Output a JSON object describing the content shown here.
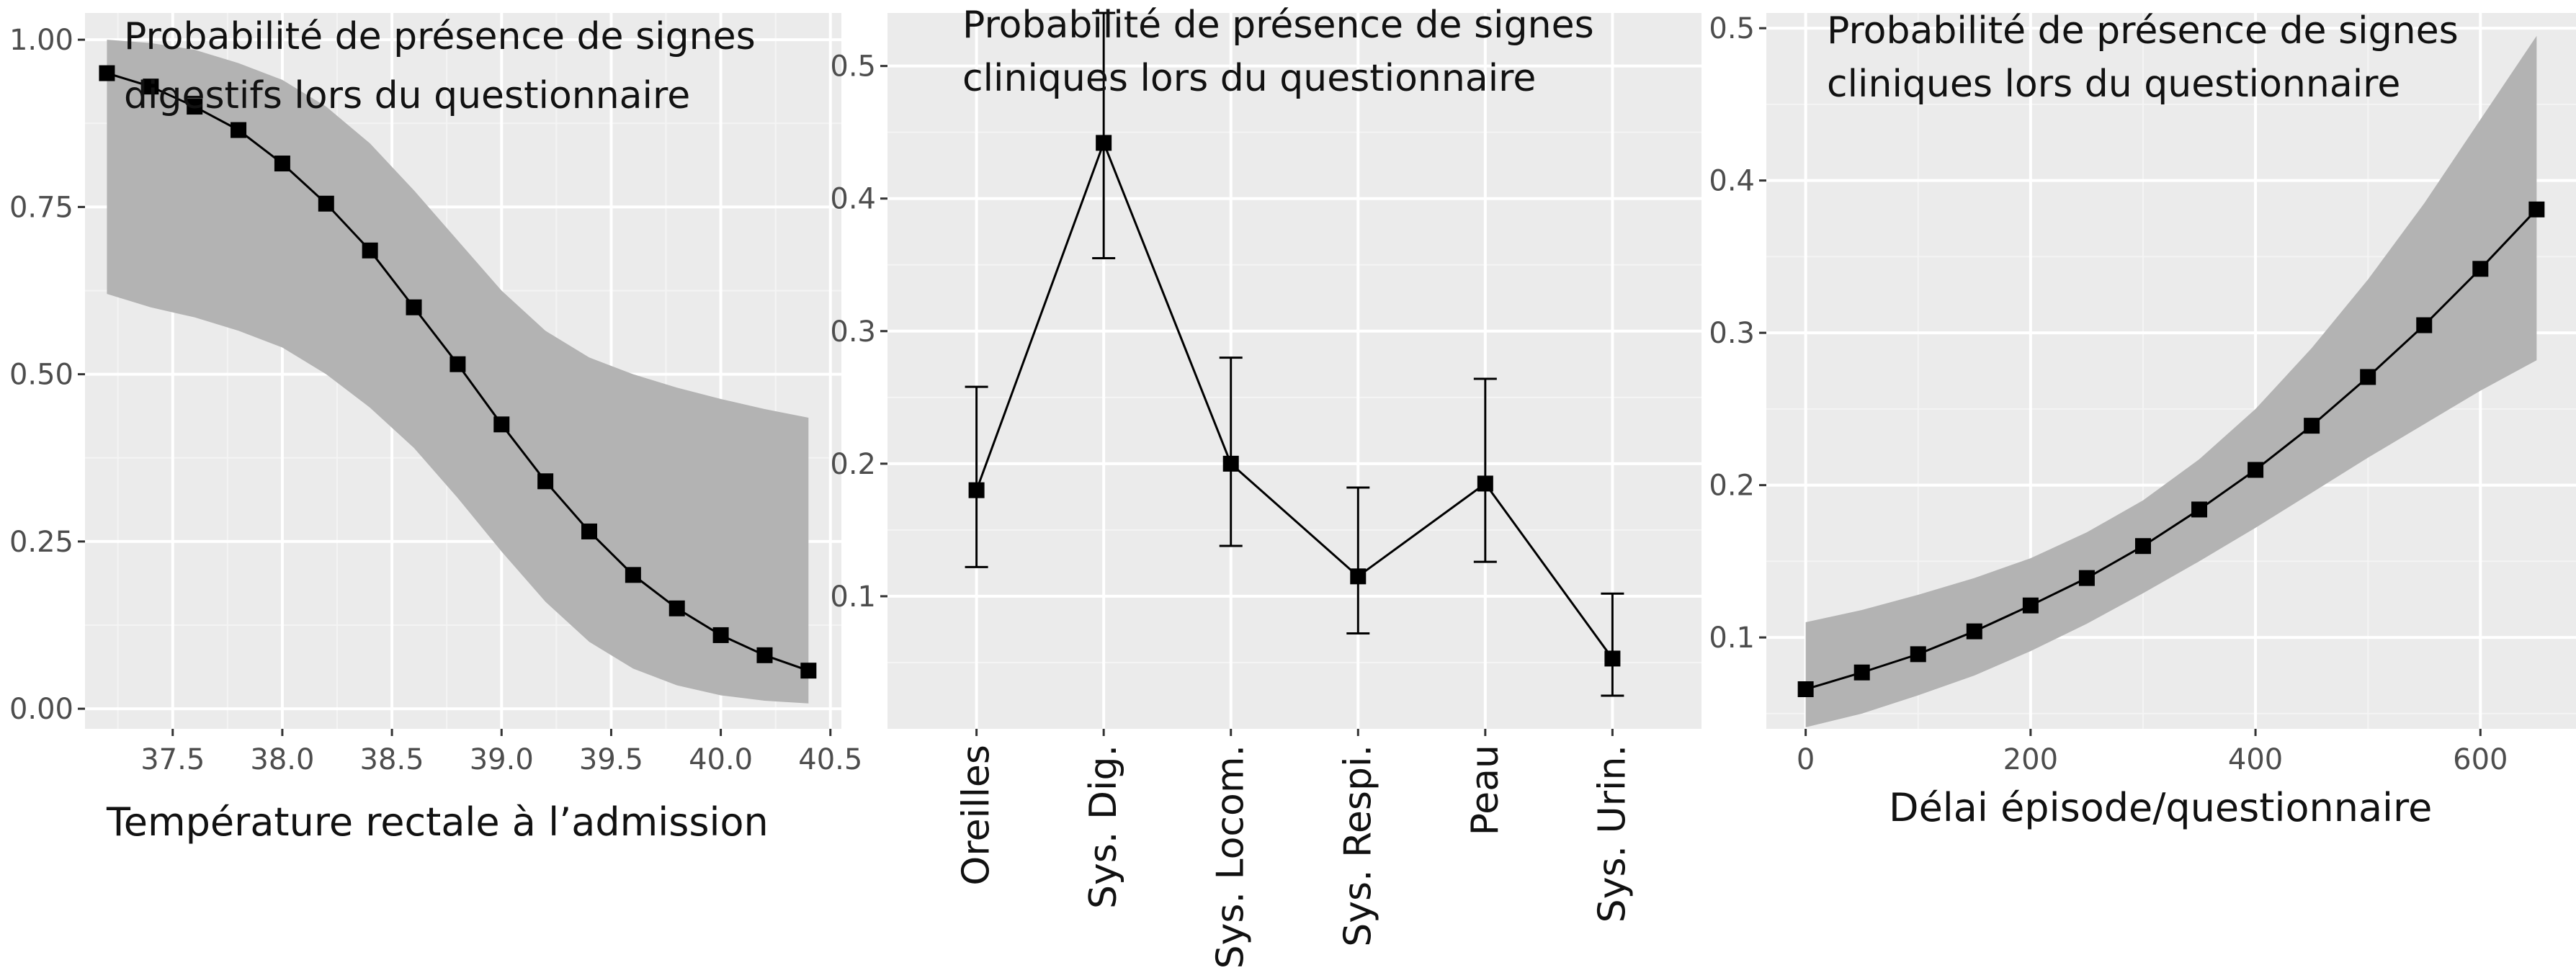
{
  "chart_data": [
    {
      "type": "line",
      "annotation_lines": [
        "Probabilité de présence de signes",
        "digestifs lors du questionnaire"
      ],
      "xlabel": "Température rectale à l’admission",
      "xlim": [
        37.1,
        40.55
      ],
      "ylim": [
        -0.03,
        1.04
      ],
      "x_ticks": [
        37.5,
        38.0,
        38.5,
        39.0,
        39.5,
        40.0,
        40.5
      ],
      "x_tick_labels": [
        "37.5",
        "38.0",
        "38.5",
        "39.0",
        "39.5",
        "40.0",
        "40.5"
      ],
      "y_ticks": [
        0,
        0.25,
        0.5,
        0.75,
        1.0
      ],
      "y_tick_labels": [
        "0.00",
        "0.25",
        "0.50",
        "0.75",
        "1.00"
      ],
      "x": [
        37.2,
        37.4,
        37.6,
        37.8,
        38.0,
        38.2,
        38.4,
        38.6,
        38.8,
        39.0,
        39.2,
        39.4,
        39.6,
        39.8,
        40.0,
        40.2,
        40.4
      ],
      "y": [
        0.95,
        0.93,
        0.9,
        0.865,
        0.815,
        0.755,
        0.685,
        0.6,
        0.515,
        0.425,
        0.34,
        0.265,
        0.2,
        0.15,
        0.11,
        0.08,
        0.057
      ],
      "lower": [
        0.62,
        0.6,
        0.585,
        0.565,
        0.54,
        0.5,
        0.45,
        0.39,
        0.315,
        0.235,
        0.16,
        0.1,
        0.06,
        0.035,
        0.02,
        0.012,
        0.008
      ],
      "upper": [
        1.0,
        0.995,
        0.985,
        0.965,
        0.94,
        0.9,
        0.845,
        0.775,
        0.7,
        0.625,
        0.565,
        0.525,
        0.5,
        0.48,
        0.463,
        0.448,
        0.435
      ],
      "grid": true
    },
    {
      "type": "line",
      "annotation_lines": [
        "Probabilité de présence de signes",
        "cliniques lors du questionnaire"
      ],
      "categories": [
        "Oreilles",
        "Sys. Dig.",
        "Sys. Locom.",
        "Sys. Respi.",
        "Peau",
        "Sys. Urin."
      ],
      "ylim": [
        0,
        0.54
      ],
      "y_ticks": [
        0.1,
        0.2,
        0.3,
        0.4,
        0.5
      ],
      "y_tick_labels": [
        "0.1",
        "0.2",
        "0.3",
        "0.4",
        "0.5"
      ],
      "values": [
        0.18,
        0.442,
        0.2,
        0.115,
        0.185,
        0.053
      ],
      "lower": [
        0.122,
        0.355,
        0.138,
        0.072,
        0.126,
        0.025
      ],
      "upper": [
        0.258,
        0.54,
        0.28,
        0.182,
        0.264,
        0.102
      ],
      "grid": true
    },
    {
      "type": "line",
      "annotation_lines": [
        "Probabilité de présence de signes",
        "cliniques lors du questionnaire"
      ],
      "xlabel": "Délai épisode/questionnaire",
      "xlim": [
        -35,
        685
      ],
      "ylim": [
        0.04,
        0.51
      ],
      "x_ticks": [
        0,
        200,
        400,
        600
      ],
      "x_tick_labels": [
        "0",
        "200",
        "400",
        "600"
      ],
      "y_ticks": [
        0.1,
        0.2,
        0.3,
        0.4,
        0.5
      ],
      "y_tick_labels": [
        "0.1",
        "0.2",
        "0.3",
        "0.4",
        "0.5"
      ],
      "x": [
        0,
        50,
        100,
        150,
        200,
        250,
        300,
        350,
        400,
        450,
        500,
        550,
        600,
        650
      ],
      "y": [
        0.066,
        0.077,
        0.089,
        0.104,
        0.121,
        0.139,
        0.16,
        0.184,
        0.21,
        0.239,
        0.271,
        0.305,
        0.342,
        0.381
      ],
      "lower": [
        0.041,
        0.05,
        0.062,
        0.075,
        0.091,
        0.109,
        0.129,
        0.15,
        0.172,
        0.195,
        0.218,
        0.24,
        0.262,
        0.282
      ],
      "upper": [
        0.11,
        0.118,
        0.128,
        0.139,
        0.152,
        0.169,
        0.19,
        0.217,
        0.25,
        0.29,
        0.335,
        0.385,
        0.44,
        0.495
      ],
      "grid": true
    }
  ]
}
